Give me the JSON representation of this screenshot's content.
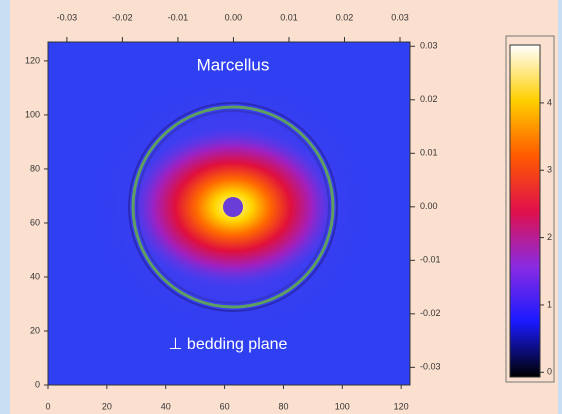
{
  "chart_data": {
    "type": "image",
    "xlim": [
      0,
      123
    ],
    "xticks": [
      0,
      20,
      40,
      60,
      80,
      100,
      120
    ],
    "ylim": [
      0,
      127
    ],
    "yticks": [
      0,
      20,
      40,
      60,
      80,
      100,
      120
    ],
    "x2lim": [
      -0.0334,
      0.0318
    ],
    "x2ticks": [
      -0.03,
      -0.02,
      -0.01,
      {
        "value": 0,
        "label": "0.00"
      },
      0.01,
      0.02,
      0.03
    ],
    "y2lim": [
      -0.0333,
      0.0308
    ],
    "y2ticks": [
      -0.03,
      -0.02,
      -0.01,
      {
        "value": 0,
        "label": "0.00"
      },
      0.01,
      0.02,
      0.03
    ],
    "annotations": [
      "Marcellus",
      "⊥ bedding plane"
    ],
    "colorbar": {
      "lim": [
        -0.07,
        4.86
      ],
      "ticks": [
        0,
        1,
        2,
        3,
        4
      ],
      "colormap": [
        "#000000",
        "#1a1aff",
        "#8a2be2",
        "#e0104a",
        "#ff5a00",
        "#ffd000",
        "#ffffff"
      ]
    }
  }
}
